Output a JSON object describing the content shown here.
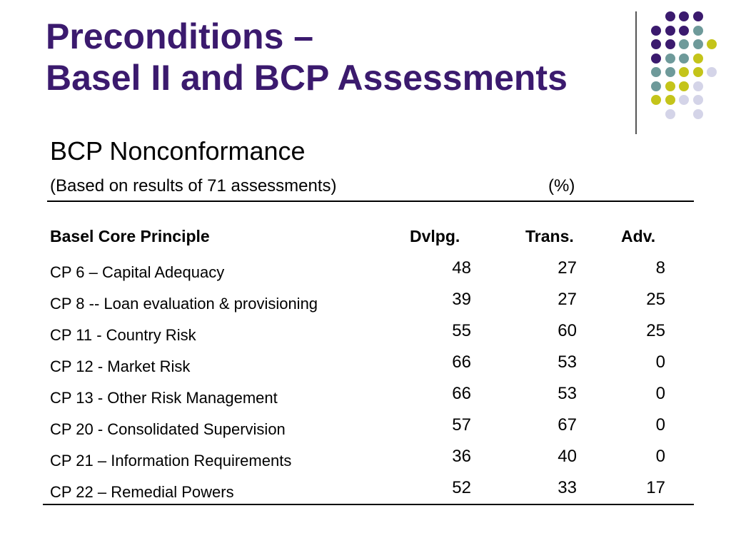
{
  "slide": {
    "title_line1": "Preconditions –",
    "title_line2": "Basel II and BCP Assessments",
    "subtitle": "BCP Nonconformance",
    "note": "(Based on results of 71 assessments)",
    "unit": "(%)"
  },
  "colors": {
    "title": "#3b1a6e",
    "dot_purple": "#3b1a6e",
    "dot_teal": "#6e9a9a",
    "dot_yellow": "#c4c41a",
    "dot_lavender": "#d4d4e8"
  },
  "table": {
    "headers": [
      "Basel Core Principle",
      "Dvlpg.",
      "Trans.",
      "Adv."
    ],
    "rows": [
      {
        "principle": "CP 6 –  Capital Adequacy",
        "dvlpg": "48",
        "trans": "27",
        "adv": "8"
      },
      {
        "principle": "CP 8 --  Loan evaluation & provisioning",
        "dvlpg": "39",
        "trans": "27",
        "adv": "25"
      },
      {
        "principle": "CP 11 - Country Risk",
        "dvlpg": "55",
        "trans": "60",
        "adv": "25"
      },
      {
        "principle": "CP 12 - Market Risk",
        "dvlpg": "66",
        "trans": "53",
        "adv": "0"
      },
      {
        "principle": "CP 13 - Other Risk Management",
        "dvlpg": "66",
        "trans": "53",
        "adv": "0"
      },
      {
        "principle": "CP 20 - Consolidated Supervision",
        "dvlpg": "57",
        "trans": "67",
        "adv": "0"
      },
      {
        "principle": "CP 21 – Information Requirements",
        "dvlpg": "36",
        "trans": "40",
        "adv": "0"
      },
      {
        "principle": "CP 22 – Remedial Powers",
        "dvlpg": "52",
        "trans": "33",
        "adv": "17"
      }
    ]
  }
}
